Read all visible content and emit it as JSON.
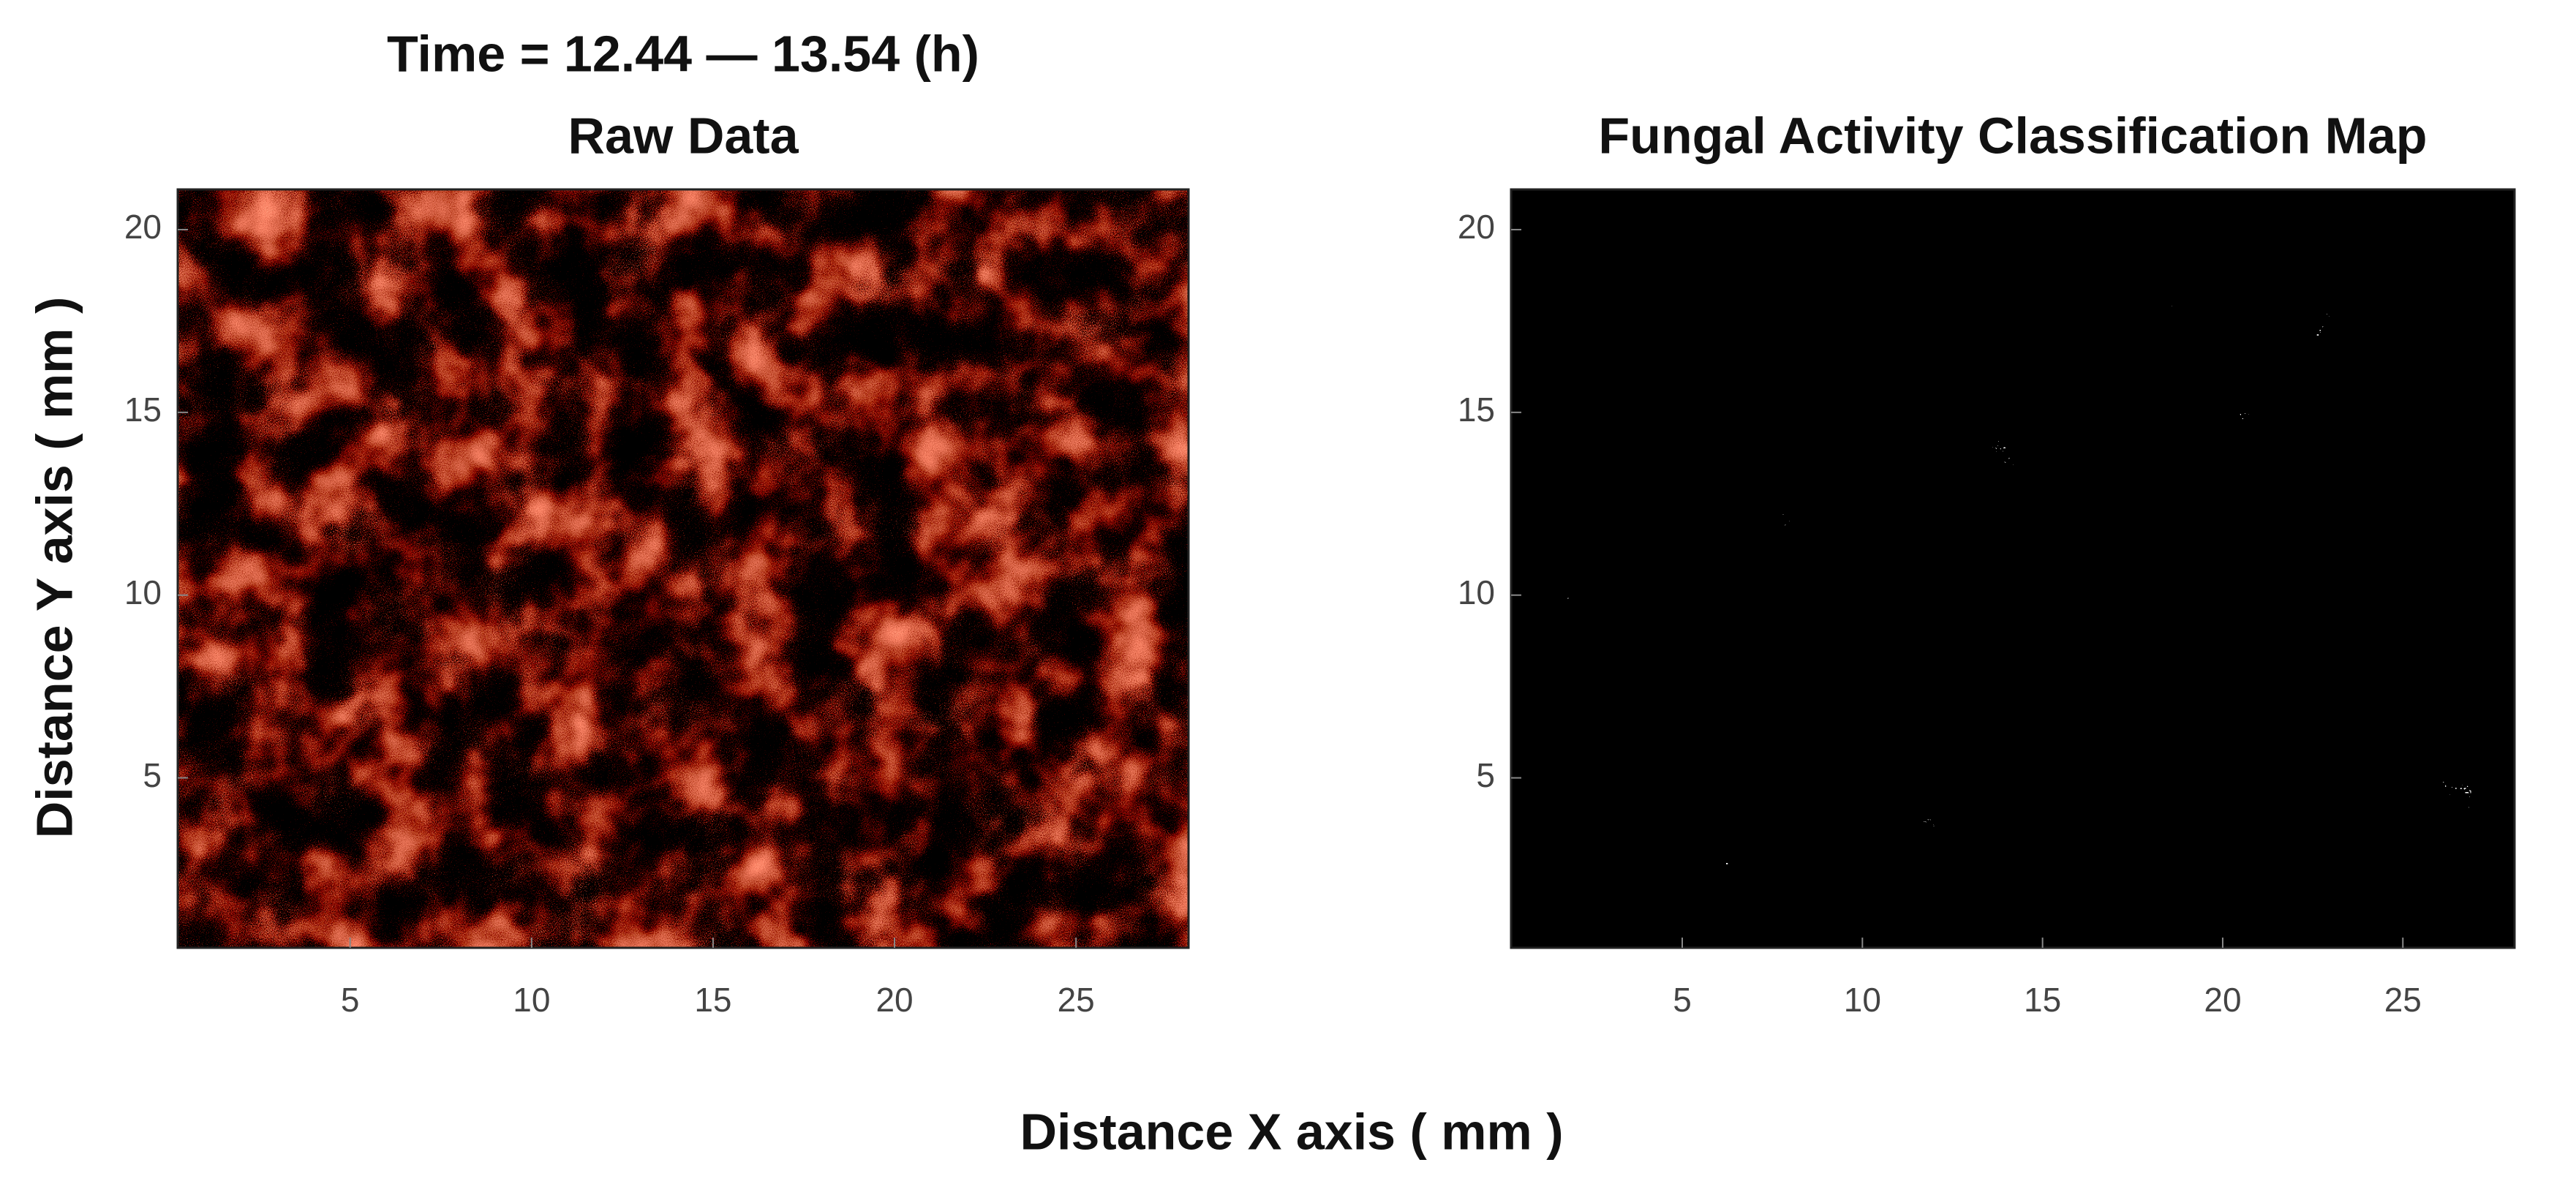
{
  "figure": {
    "title": "Time = 12.44 — 13.54 (h)",
    "xlabel": "Distance X axis ( mm )",
    "ylabel": "Distance Y axis ( mm )"
  },
  "chart_data": [
    {
      "type": "heatmap",
      "title": "Raw Data",
      "colormap": "red",
      "xlim": [
        0.25,
        28.1
      ],
      "xticks": [
        5,
        10,
        15,
        20,
        25
      ],
      "ylim": [
        0.35,
        21.1
      ],
      "yticks": [
        5,
        10,
        15,
        20
      ]
    },
    {
      "type": "heatmap",
      "title": "Fungal Activity Classification Map",
      "colormap": "binary",
      "xlim": [
        0.25,
        28.1
      ],
      "xticks": [
        5,
        10,
        15,
        20,
        25
      ],
      "ylim": [
        0.35,
        21.1
      ],
      "yticks": [
        5,
        10,
        15,
        20
      ]
    }
  ]
}
